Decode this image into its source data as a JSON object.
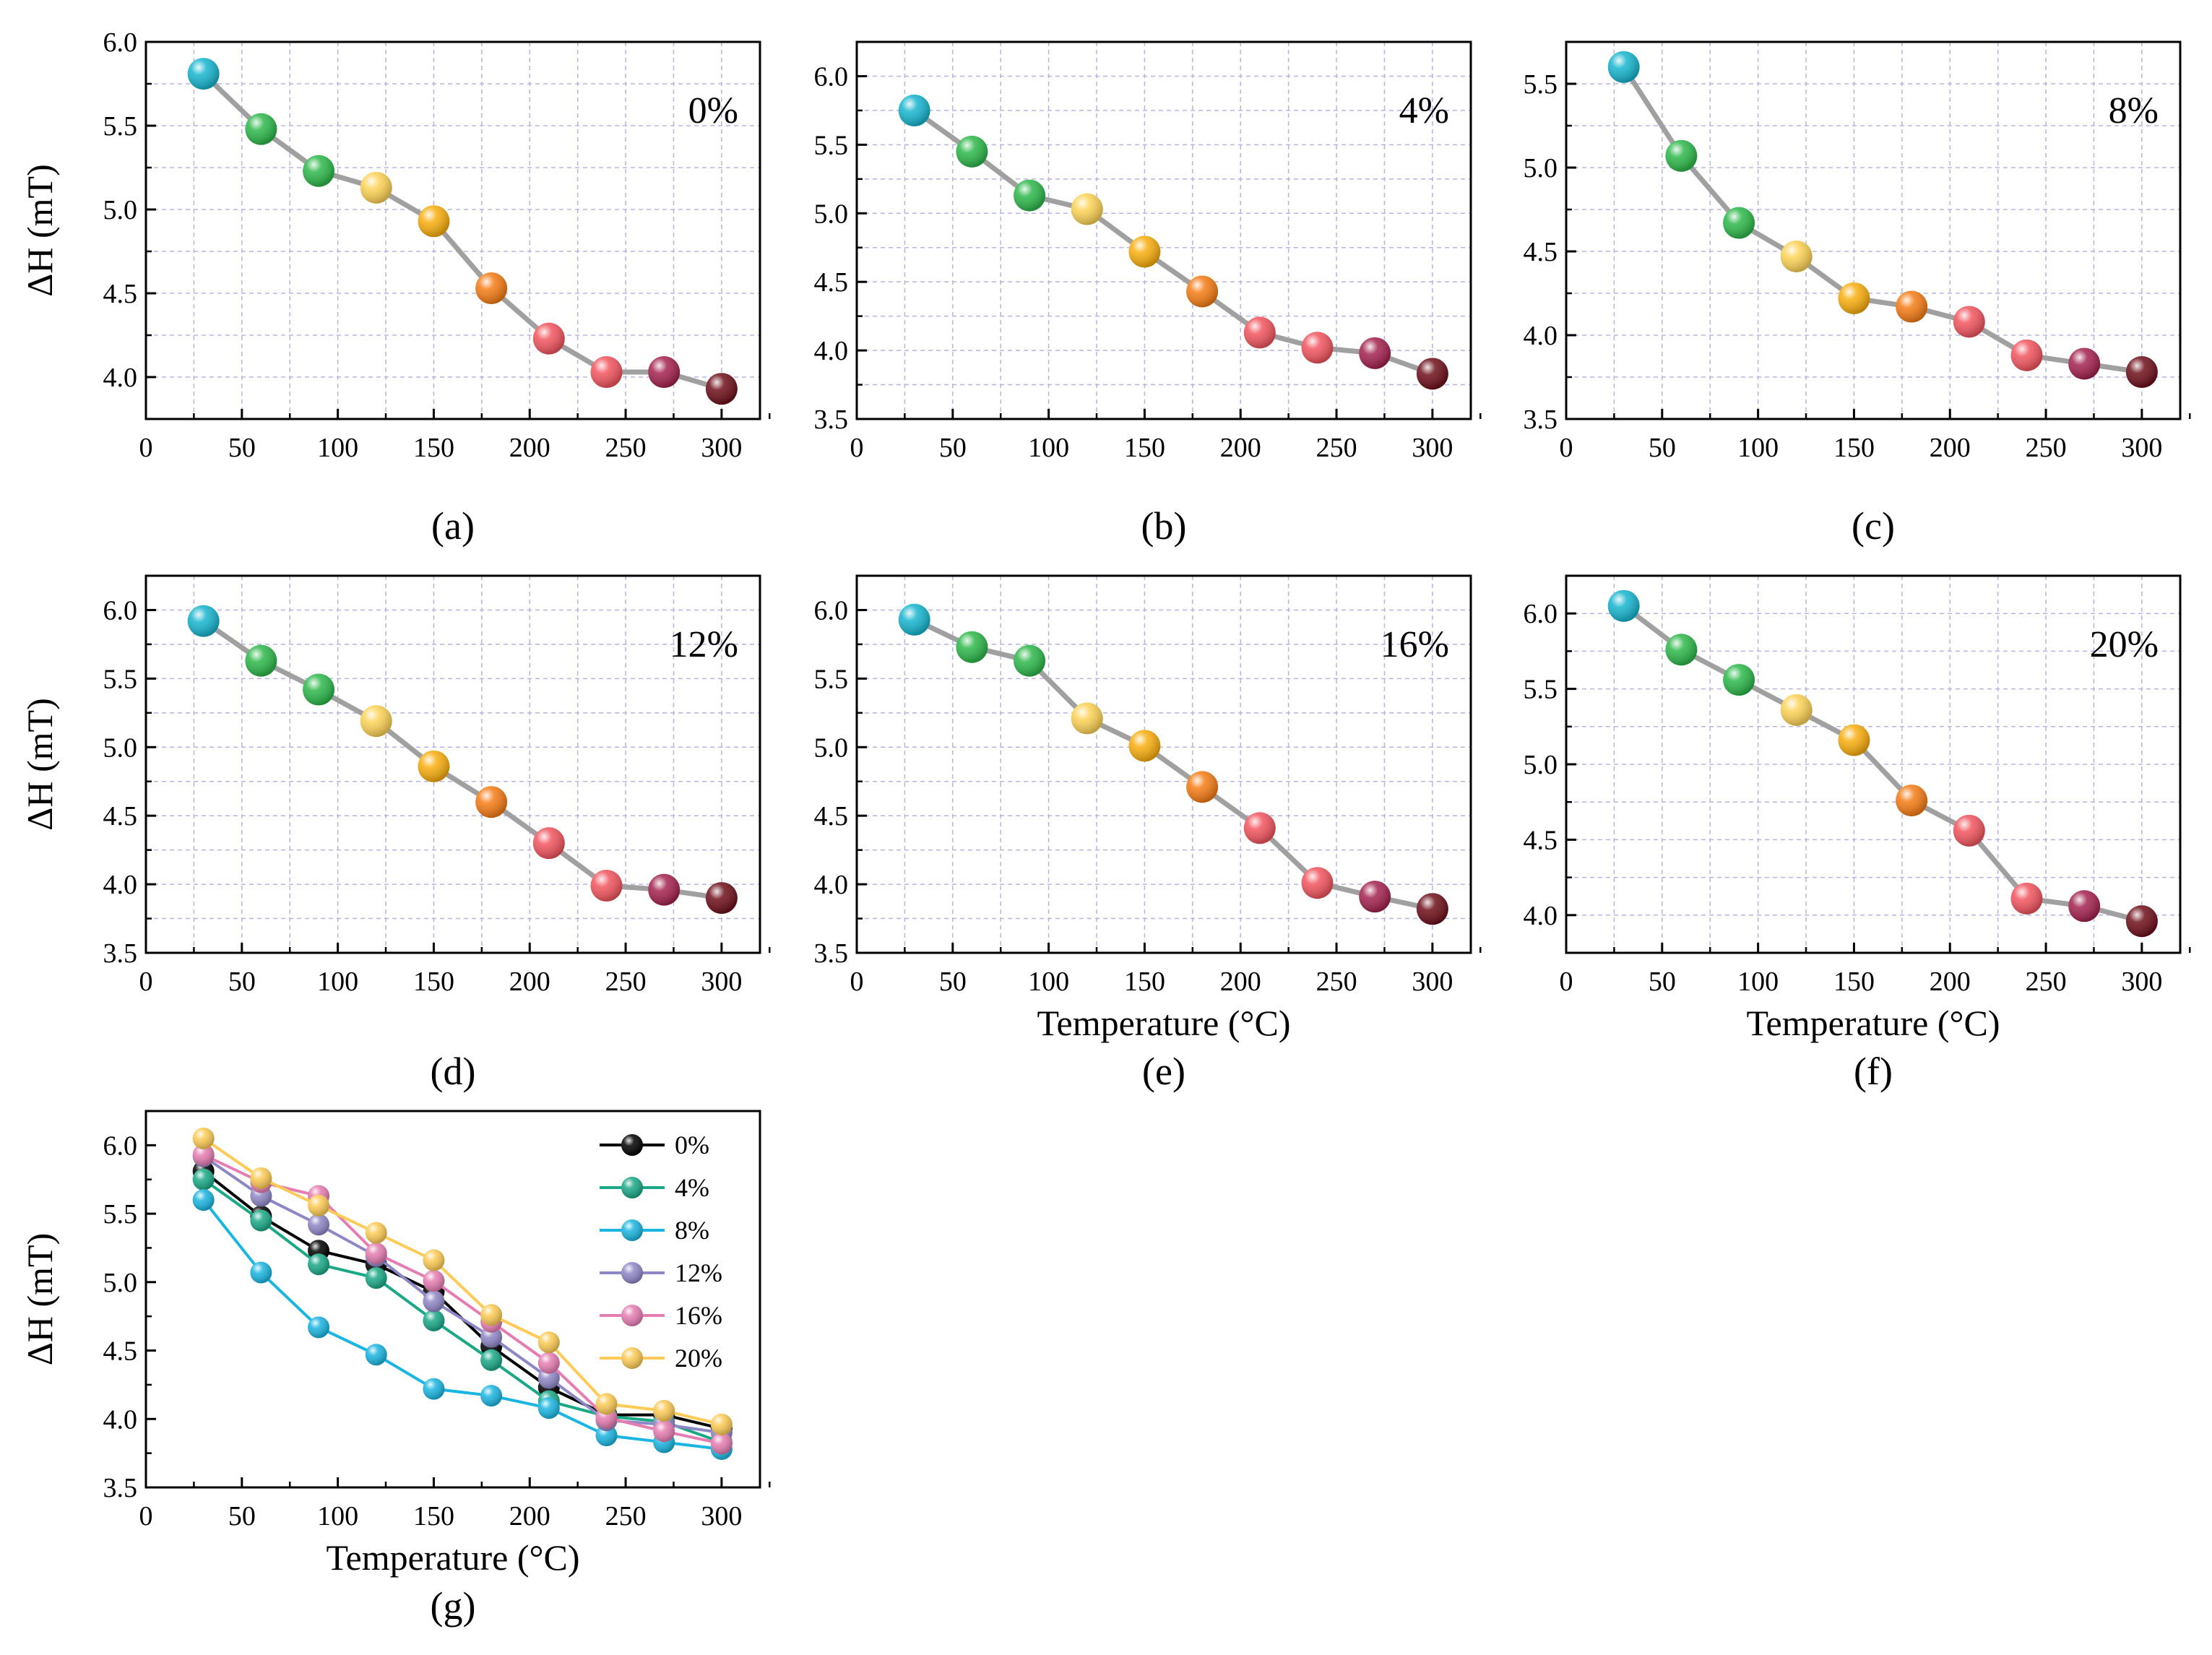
{
  "figure": {
    "panels": [
      {
        "letter": "(a)",
        "label": "0%",
        "ylabel": "ΔH (mT)",
        "xlabel": "",
        "xlim": [
          0,
          320
        ],
        "ylim": [
          3.75,
          6.0
        ],
        "xticks": [
          "0",
          "50",
          "100",
          "150",
          "200",
          "250",
          "300"
        ],
        "yticks": [
          "4.0",
          "4.5",
          "5.0",
          "5.5",
          "6.0"
        ]
      },
      {
        "letter": "(b)",
        "label": "4%",
        "ylabel": "",
        "xlabel": "",
        "xlim": [
          0,
          320
        ],
        "ylim": [
          3.5,
          6.25
        ],
        "xticks": [
          "0",
          "50",
          "100",
          "150",
          "200",
          "250",
          "300"
        ],
        "yticks": [
          "3.5",
          "4.0",
          "4.5",
          "5.0",
          "5.5",
          "6.0"
        ]
      },
      {
        "letter": "(c)",
        "label": "8%",
        "ylabel": "",
        "xlabel": "",
        "xlim": [
          0,
          320
        ],
        "ylim": [
          3.5,
          5.75
        ],
        "xticks": [
          "0",
          "50",
          "100",
          "150",
          "200",
          "250",
          "300"
        ],
        "yticks": [
          "3.5",
          "4.0",
          "4.5",
          "5.0",
          "5.5"
        ]
      },
      {
        "letter": "(d)",
        "label": "12%",
        "ylabel": "ΔH (mT)",
        "xlabel": "",
        "xlim": [
          0,
          320
        ],
        "ylim": [
          3.5,
          6.25
        ],
        "xticks": [
          "0",
          "50",
          "100",
          "150",
          "200",
          "250",
          "300"
        ],
        "yticks": [
          "3.5",
          "4.0",
          "4.5",
          "5.0",
          "5.5",
          "6.0"
        ]
      },
      {
        "letter": "(e)",
        "label": "16%",
        "ylabel": "",
        "xlabel": "Temperature (°C)",
        "xlim": [
          0,
          320
        ],
        "ylim": [
          3.5,
          6.25
        ],
        "xticks": [
          "0",
          "50",
          "100",
          "150",
          "200",
          "250",
          "300"
        ],
        "yticks": [
          "3.5",
          "4.0",
          "4.5",
          "5.0",
          "5.5",
          "6.0"
        ]
      },
      {
        "letter": "(f)",
        "label": "20%",
        "ylabel": "",
        "xlabel": "Temperature (°C)",
        "xlim": [
          0,
          320
        ],
        "ylim": [
          3.75,
          6.25
        ],
        "xticks": [
          "0",
          "50",
          "100",
          "150",
          "200",
          "250",
          "300"
        ],
        "yticks": [
          "4.0",
          "4.5",
          "5.0",
          "5.5",
          "6.0"
        ]
      },
      {
        "letter": "(g)",
        "label": "",
        "ylabel": "ΔH (mT)",
        "xlabel": "Temperature (°C)",
        "xlim": [
          0,
          320
        ],
        "ylim": [
          3.5,
          6.25
        ],
        "xticks": [
          "0",
          "50",
          "100",
          "150",
          "200",
          "250",
          "300"
        ],
        "yticks": [
          "3.5",
          "4.0",
          "4.5",
          "5.0",
          "5.5",
          "6.0"
        ]
      }
    ],
    "point_colors": [
      "#17b5cf",
      "#2db84a",
      "#2db84a",
      "#fdd356",
      "#f9ae0e",
      "#f57c15",
      "#f2555f",
      "#f2555f",
      "#a4224f",
      "#6e0f1a"
    ],
    "line_color": "#a0a0a0",
    "grid_color": "#b5b5e0"
  },
  "chart_data": [
    {
      "type": "line",
      "title": "0%",
      "x": [
        30,
        60,
        90,
        120,
        150,
        180,
        210,
        240,
        270,
        300
      ],
      "series": [
        {
          "name": "0%",
          "values": [
            5.81,
            5.48,
            5.23,
            5.13,
            4.93,
            4.53,
            4.23,
            4.03,
            4.03,
            3.93
          ]
        }
      ],
      "xlabel": "",
      "ylabel": "ΔH (mT)",
      "xlim": [
        0,
        320
      ],
      "ylim": [
        3.75,
        6.0
      ],
      "grid": true
    },
    {
      "type": "line",
      "title": "4%",
      "x": [
        30,
        60,
        90,
        120,
        150,
        180,
        210,
        240,
        270,
        300
      ],
      "series": [
        {
          "name": "4%",
          "values": [
            5.75,
            5.45,
            5.13,
            5.03,
            4.72,
            4.43,
            4.13,
            4.02,
            3.98,
            3.83
          ]
        }
      ],
      "xlabel": "",
      "ylabel": "",
      "xlim": [
        0,
        320
      ],
      "ylim": [
        3.5,
        6.25
      ],
      "grid": true
    },
    {
      "type": "line",
      "title": "8%",
      "x": [
        30,
        60,
        90,
        120,
        150,
        180,
        210,
        240,
        270,
        300
      ],
      "series": [
        {
          "name": "8%",
          "values": [
            5.6,
            5.07,
            4.67,
            4.47,
            4.22,
            4.17,
            4.08,
            3.88,
            3.83,
            3.78
          ]
        }
      ],
      "xlabel": "",
      "ylabel": "",
      "xlim": [
        0,
        320
      ],
      "ylim": [
        3.5,
        5.75
      ],
      "grid": true
    },
    {
      "type": "line",
      "title": "12%",
      "x": [
        30,
        60,
        90,
        120,
        150,
        180,
        210,
        240,
        270,
        300
      ],
      "series": [
        {
          "name": "12%",
          "values": [
            5.92,
            5.63,
            5.42,
            5.19,
            4.86,
            4.6,
            4.3,
            3.99,
            3.96,
            3.9
          ]
        }
      ],
      "xlabel": "",
      "ylabel": "ΔH (mT)",
      "xlim": [
        0,
        320
      ],
      "ylim": [
        3.5,
        6.25
      ],
      "grid": true
    },
    {
      "type": "line",
      "title": "16%",
      "x": [
        30,
        60,
        90,
        120,
        150,
        180,
        210,
        240,
        270,
        300
      ],
      "series": [
        {
          "name": "16%",
          "values": [
            5.93,
            5.73,
            5.63,
            5.21,
            5.01,
            4.71,
            4.41,
            4.01,
            3.91,
            3.82
          ]
        }
      ],
      "xlabel": "Temperature (°C)",
      "ylabel": "",
      "xlim": [
        0,
        320
      ],
      "ylim": [
        3.5,
        6.25
      ],
      "grid": true
    },
    {
      "type": "line",
      "title": "20%",
      "x": [
        30,
        60,
        90,
        120,
        150,
        180,
        210,
        240,
        270,
        300
      ],
      "series": [
        {
          "name": "20%",
          "values": [
            6.05,
            5.76,
            5.56,
            5.36,
            5.16,
            4.76,
            4.56,
            4.11,
            4.06,
            3.96
          ]
        }
      ],
      "xlabel": "Temperature (°C)",
      "ylabel": "",
      "xlim": [
        0,
        320
      ],
      "ylim": [
        3.75,
        6.25
      ],
      "grid": true
    },
    {
      "type": "line",
      "title": "",
      "x": [
        30,
        60,
        90,
        120,
        150,
        180,
        210,
        240,
        270,
        300
      ],
      "series": [
        {
          "name": "0%",
          "color": "#000000",
          "values": [
            5.81,
            5.48,
            5.23,
            5.13,
            4.93,
            4.53,
            4.23,
            4.03,
            4.03,
            3.93
          ]
        },
        {
          "name": "4%",
          "color": "#1aa886",
          "values": [
            5.75,
            5.45,
            5.13,
            5.03,
            4.72,
            4.43,
            4.13,
            4.02,
            3.98,
            3.83
          ]
        },
        {
          "name": "8%",
          "color": "#1ab5e0",
          "values": [
            5.6,
            5.07,
            4.67,
            4.47,
            4.22,
            4.17,
            4.08,
            3.88,
            3.83,
            3.78
          ]
        },
        {
          "name": "12%",
          "color": "#8e87c6",
          "values": [
            5.92,
            5.63,
            5.42,
            5.19,
            4.86,
            4.6,
            4.3,
            3.99,
            3.96,
            3.9
          ]
        },
        {
          "name": "16%",
          "color": "#e57db2",
          "values": [
            5.93,
            5.73,
            5.63,
            5.21,
            5.01,
            4.71,
            4.41,
            4.01,
            3.91,
            3.82
          ]
        },
        {
          "name": "20%",
          "color": "#fdcb56",
          "values": [
            6.05,
            5.76,
            5.56,
            5.36,
            5.16,
            4.76,
            4.56,
            4.11,
            4.06,
            3.96
          ]
        }
      ],
      "xlabel": "Temperature (°C)",
      "ylabel": "ΔH (mT)",
      "xlim": [
        0,
        320
      ],
      "ylim": [
        3.5,
        6.25
      ],
      "grid": false,
      "legend": "top-right"
    }
  ]
}
